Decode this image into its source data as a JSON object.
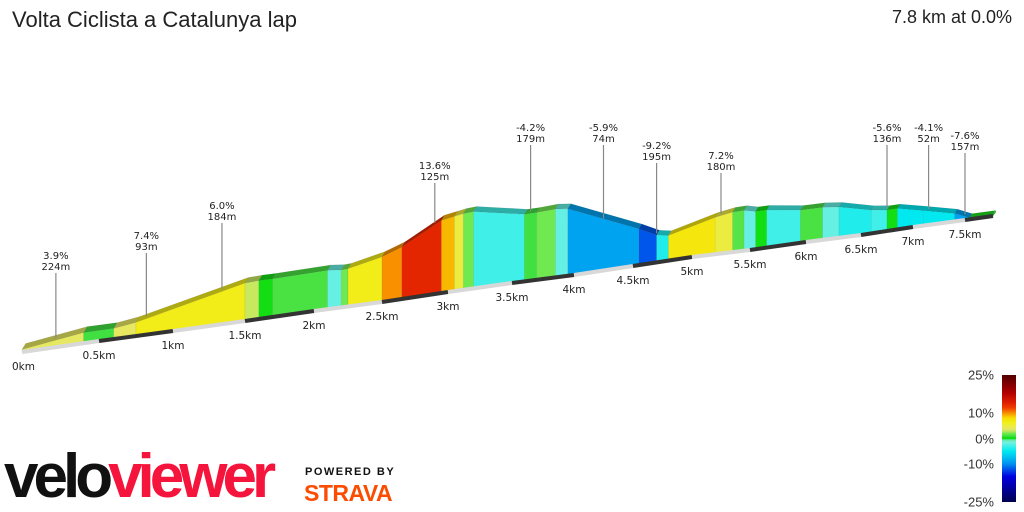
{
  "header": {
    "title": "Volta Ciclista a Catalunya lap",
    "summary": "7.8 km at 0.0%"
  },
  "chart_data": {
    "type": "area",
    "title": "Volta Ciclista a Catalunya lap",
    "total_distance_km": 7.8,
    "average_grade_pct": 0.0,
    "x_ticks": [
      "0km",
      "0.5km",
      "1km",
      "1.5km",
      "2km",
      "2.5km",
      "3km",
      "3.5km",
      "4km",
      "4.5km",
      "5km",
      "5.5km",
      "6km",
      "6.5km",
      "7km",
      "7.5km"
    ],
    "segments": [
      {
        "from": 0.0,
        "to": 0.4,
        "grade": 3.9
      },
      {
        "from": 0.4,
        "to": 0.6,
        "grade": 1.0
      },
      {
        "from": 0.6,
        "to": 0.75,
        "grade": 4.0
      },
      {
        "from": 0.75,
        "to": 1.5,
        "grade": 6.5
      },
      {
        "from": 1.5,
        "to": 1.6,
        "grade": 3.0
      },
      {
        "from": 1.6,
        "to": 1.7,
        "grade": 0.3
      },
      {
        "from": 1.7,
        "to": 2.1,
        "grade": 1.2
      },
      {
        "from": 2.1,
        "to": 2.2,
        "grade": -2.0
      },
      {
        "from": 2.2,
        "to": 2.25,
        "grade": 2.0
      },
      {
        "from": 2.25,
        "to": 2.5,
        "grade": 6.5
      },
      {
        "from": 2.5,
        "to": 2.65,
        "grade": 10.0
      },
      {
        "from": 2.65,
        "to": 2.95,
        "grade": 13.6
      },
      {
        "from": 2.95,
        "to": 3.05,
        "grade": 9.0
      },
      {
        "from": 3.05,
        "to": 3.12,
        "grade": 5.0
      },
      {
        "from": 3.12,
        "to": 3.2,
        "grade": 2.0
      },
      {
        "from": 3.2,
        "to": 3.6,
        "grade": -3.0
      },
      {
        "from": 3.6,
        "to": 3.7,
        "grade": 1.0
      },
      {
        "from": 3.7,
        "to": 3.85,
        "grade": 2.0
      },
      {
        "from": 3.85,
        "to": 3.95,
        "grade": -2.0
      },
      {
        "from": 3.95,
        "to": 4.55,
        "grade": -9.0
      },
      {
        "from": 4.55,
        "to": 4.7,
        "grade": -12.0
      },
      {
        "from": 4.7,
        "to": 4.8,
        "grade": -4.0
      },
      {
        "from": 4.8,
        "to": 5.2,
        "grade": 7.2
      },
      {
        "from": 5.2,
        "to": 5.35,
        "grade": 5.0
      },
      {
        "from": 5.35,
        "to": 5.45,
        "grade": 1.5
      },
      {
        "from": 5.45,
        "to": 5.55,
        "grade": -2.0
      },
      {
        "from": 5.55,
        "to": 5.65,
        "grade": 0.3
      },
      {
        "from": 5.65,
        "to": 5.95,
        "grade": -3.0
      },
      {
        "from": 5.95,
        "to": 6.15,
        "grade": 1.2
      },
      {
        "from": 6.15,
        "to": 6.3,
        "grade": -2.0
      },
      {
        "from": 6.3,
        "to": 6.6,
        "grade": -4.0
      },
      {
        "from": 6.6,
        "to": 6.75,
        "grade": -3.0
      },
      {
        "from": 6.75,
        "to": 6.85,
        "grade": 0.3
      },
      {
        "from": 6.85,
        "to": 7.1,
        "grade": -5.0
      },
      {
        "from": 7.1,
        "to": 7.4,
        "grade": -5.0
      },
      {
        "from": 7.4,
        "to": 7.55,
        "grade": -9.0
      },
      {
        "from": 7.55,
        "to": 7.8,
        "grade": 0.5
      }
    ],
    "annotations": [
      {
        "km": 0.22,
        "grade": "3.9%",
        "length": "224m"
      },
      {
        "km": 0.82,
        "grade": "7.4%",
        "length": "93m"
      },
      {
        "km": 1.34,
        "grade": "6.0%",
        "length": "184m"
      },
      {
        "km": 2.9,
        "grade": "13.6%",
        "length": "125m"
      },
      {
        "km": 3.65,
        "grade": "-4.2%",
        "length": "179m"
      },
      {
        "km": 4.25,
        "grade": "-5.9%",
        "length": "74m"
      },
      {
        "km": 4.7,
        "grade": "-9.2%",
        "length": "195m"
      },
      {
        "km": 5.25,
        "grade": "7.2%",
        "length": "180m"
      },
      {
        "km": 6.75,
        "grade": "-5.6%",
        "length": "136m"
      },
      {
        "km": 7.15,
        "grade": "-4.1%",
        "length": "52m"
      },
      {
        "km": 7.5,
        "grade": "-7.6%",
        "length": "157m"
      }
    ],
    "color_scale": {
      "labels": [
        "25%",
        "10%",
        "0%",
        "-10%",
        "-25%"
      ],
      "stops": [
        {
          "grade": 25,
          "color": "#500000"
        },
        {
          "grade": 18,
          "color": "#b00000"
        },
        {
          "grade": 14,
          "color": "#e02000"
        },
        {
          "grade": 12,
          "color": "#f04000"
        },
        {
          "grade": 10,
          "color": "#f89000"
        },
        {
          "grade": 8,
          "color": "#f8e000"
        },
        {
          "grade": 6,
          "color": "#f0f020"
        },
        {
          "grade": 4,
          "color": "#e8e860"
        },
        {
          "grade": 3,
          "color": "#c8e860"
        },
        {
          "grade": 2,
          "color": "#70e850"
        },
        {
          "grade": 1,
          "color": "#40e040"
        },
        {
          "grade": 0,
          "color": "#00dd00"
        },
        {
          "grade": -0.5,
          "color": "#60e8a0"
        },
        {
          "grade": -1.5,
          "color": "#78f0e0"
        },
        {
          "grade": -3,
          "color": "#40f0e8"
        },
        {
          "grade": -5,
          "color": "#00e8f0"
        },
        {
          "grade": -7,
          "color": "#00c8f0"
        },
        {
          "grade": -10,
          "color": "#0090f0"
        },
        {
          "grade": -15,
          "color": "#0000e0"
        },
        {
          "grade": -25,
          "color": "#000050"
        }
      ]
    }
  },
  "branding": {
    "logo_velo": "velo",
    "logo_viewer": "viewer",
    "powered_by": "POWERED BY",
    "strava": "STRAVA"
  }
}
